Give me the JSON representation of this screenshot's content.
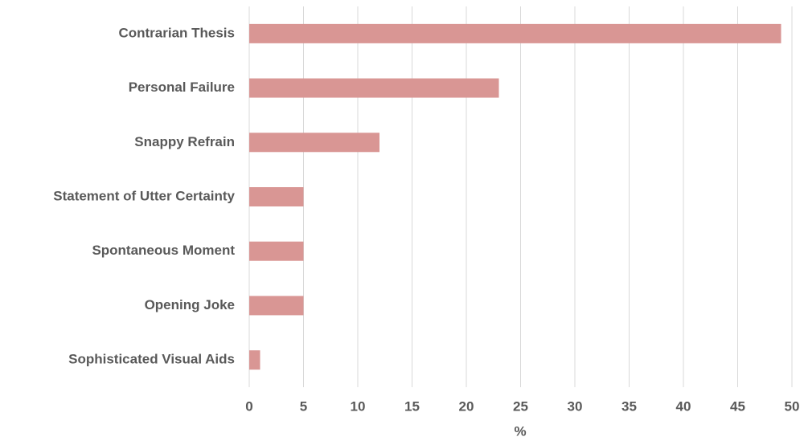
{
  "chart_data": {
    "type": "bar",
    "orientation": "horizontal",
    "categories": [
      "Contrarian Thesis",
      "Personal Failure",
      "Snappy Refrain",
      "Statement of Utter Certainty",
      "Spontaneous Moment",
      "Opening Joke",
      "Sophisticated Visual Aids"
    ],
    "values": [
      49,
      23,
      12,
      5,
      5,
      5,
      1
    ],
    "color": "#d99694",
    "xlabel": "%",
    "xlim": [
      0,
      50
    ],
    "xticks": [
      0,
      5,
      10,
      15,
      20,
      25,
      30,
      35,
      40,
      45,
      50
    ],
    "grid": true
  }
}
